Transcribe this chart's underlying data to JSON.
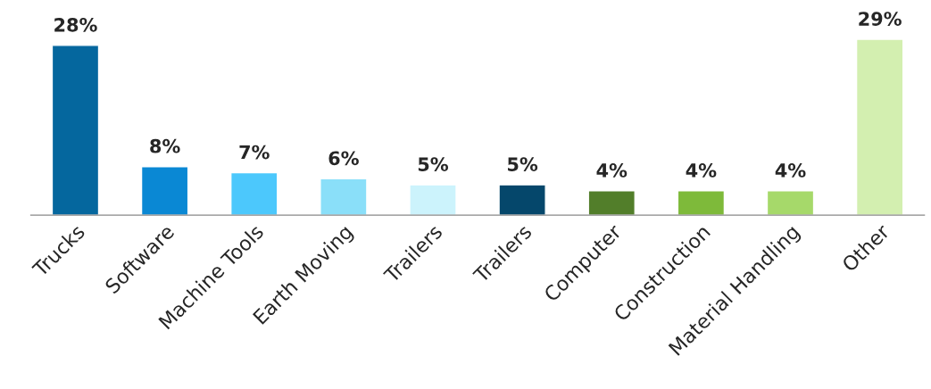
{
  "chart_data": {
    "type": "bar",
    "categories": [
      "Trucks",
      "Software",
      "Machine Tools",
      "Earth Moving",
      "Trailers",
      "Trailers",
      "Computer",
      "Construction",
      "Material Handling",
      "Other"
    ],
    "values": [
      28,
      8,
      7,
      6,
      5,
      5,
      4,
      4,
      4,
      29
    ],
    "colors": [
      "#05679e",
      "#0a88d4",
      "#4cc8fc",
      "#8adff9",
      "#ccf3fc",
      "#05476b",
      "#527e2a",
      "#7eba3a",
      "#a6d96a",
      "#d3efb0"
    ],
    "value_labels": [
      "28%",
      "8%",
      "7%",
      "6%",
      "5%",
      "5%",
      "4%",
      "4%",
      "4%",
      "29%"
    ],
    "grid": false,
    "legend": false
  }
}
